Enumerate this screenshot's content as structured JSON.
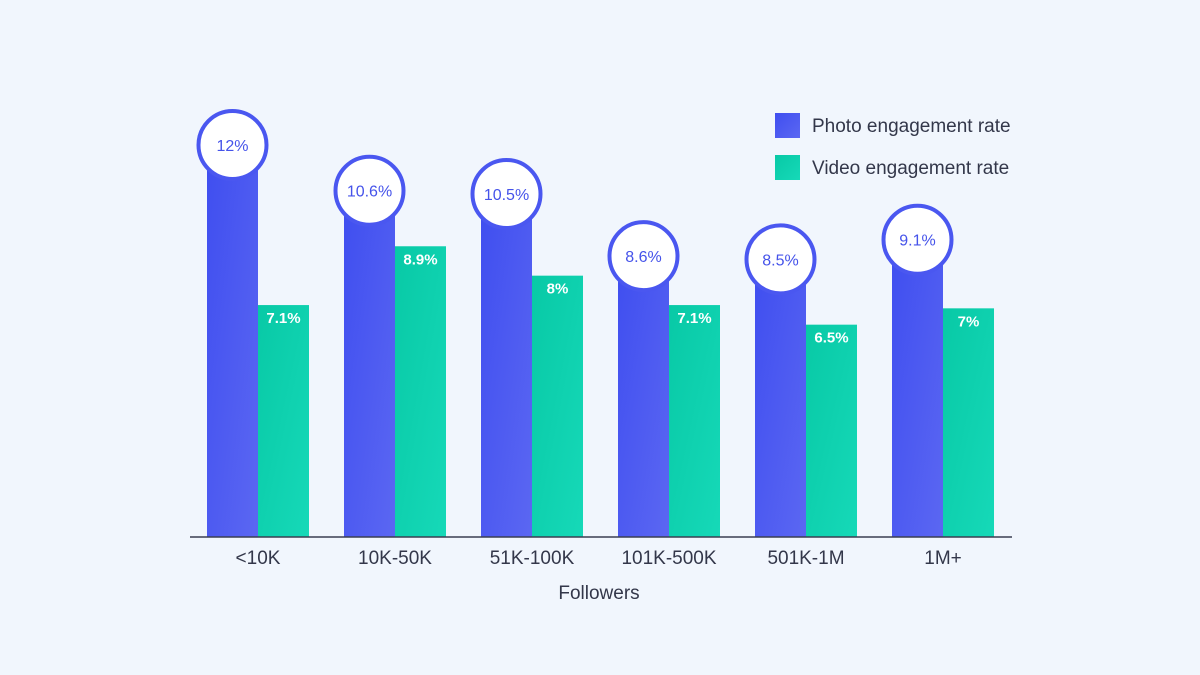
{
  "chart_data": {
    "type": "bar",
    "categories": [
      "<10K",
      "10K-50K",
      "51K-100K",
      "101K-500K",
      "501K-1M",
      "1M+"
    ],
    "series": [
      {
        "name": "Photo engagement rate",
        "values": [
          12,
          10.6,
          10.5,
          8.6,
          8.5,
          9.1
        ],
        "labels": [
          "12%",
          "10.6%",
          "10.5%",
          "8.6%",
          "8.5%",
          "9.1%"
        ],
        "color": "#4a57f0"
      },
      {
        "name": "Video engagement rate",
        "values": [
          7.1,
          8.9,
          8,
          7.1,
          6.5,
          7
        ],
        "labels": [
          "7.1%",
          "8.9%",
          "8%",
          "7.1%",
          "6.5%",
          "7%"
        ],
        "color": "#0fd3b0"
      }
    ],
    "title": "",
    "xlabel": "Followers",
    "ylabel": "",
    "ylim": [
      0,
      13.5
    ],
    "grid": false,
    "legend_position": "top-right"
  },
  "colors": {
    "background": "#f1f6fd",
    "axis": "#3a3e52",
    "photo_dark": "#3f4ef0",
    "photo_light": "#5b67f2",
    "video_dark": "#08c9a6",
    "video_light": "#16d9b8",
    "bubble_fill": "#ffffff",
    "bubble_stroke": "#4a57f0"
  }
}
